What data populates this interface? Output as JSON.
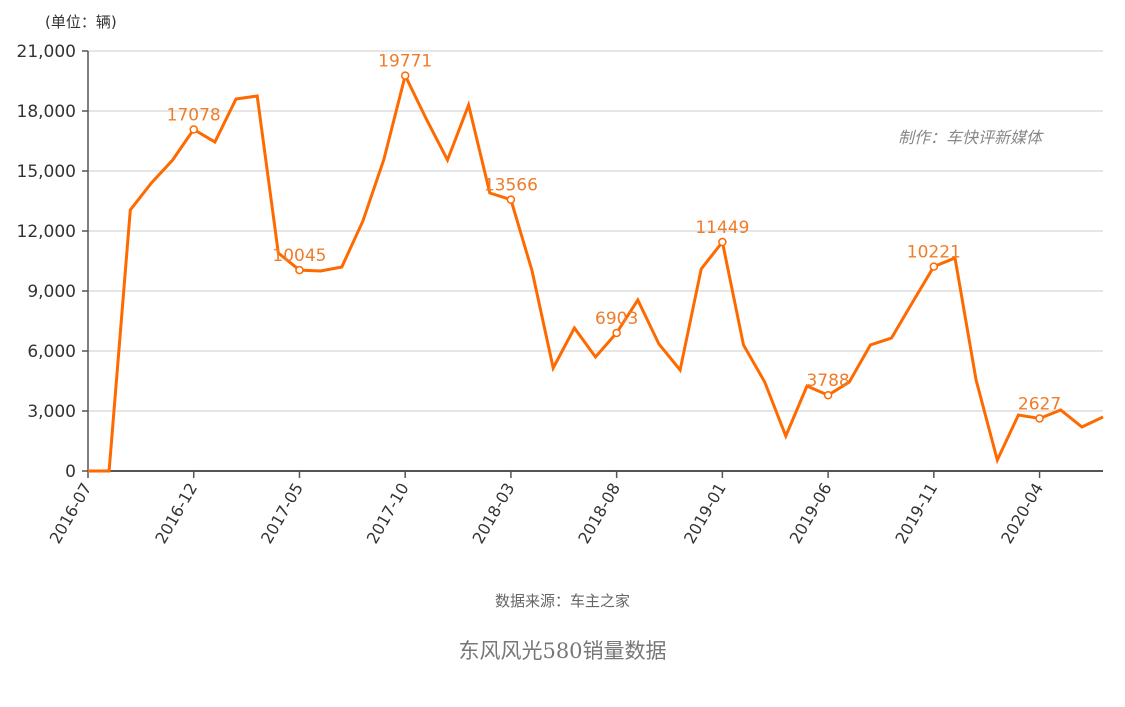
{
  "header": {
    "unit_label": "(单位：辆)"
  },
  "annotation": {
    "credit": "制作：车快评新媒体"
  },
  "footer": {
    "source": "数据来源：车主之家",
    "title": "东风风光580销量数据"
  },
  "colors": {
    "line": "#FF6A00",
    "label": "#F07C2A",
    "grid": "#CCCCCC",
    "axis": "#555555"
  },
  "chart_data": {
    "type": "line",
    "title": "东风风光580销量数据",
    "subtitle": "数据来源：车主之家",
    "xlabel": "",
    "ylabel": "(单位：辆)",
    "ylim": [
      0,
      21000
    ],
    "yticks": [
      0,
      3000,
      6000,
      9000,
      12000,
      15000,
      18000,
      21000
    ],
    "ytick_labels": [
      "0",
      "3,000",
      "6,000",
      "9,000",
      "12,000",
      "15,000",
      "18,000",
      "21,000"
    ],
    "xtick_labels": [
      "2016-07",
      "2016-12",
      "2017-05",
      "2017-10",
      "2018-03",
      "2018-08",
      "2019-01",
      "2019-06",
      "2019-11",
      "2020-04"
    ],
    "grid": true,
    "legend": "none",
    "x": [
      "2016-07",
      "2016-08",
      "2016-09",
      "2016-10",
      "2016-11",
      "2016-12",
      "2017-01",
      "2017-02",
      "2017-03",
      "2017-04",
      "2017-05",
      "2017-06",
      "2017-07",
      "2017-08",
      "2017-09",
      "2017-10",
      "2017-11",
      "2017-12",
      "2018-01",
      "2018-02",
      "2018-03",
      "2018-04",
      "2018-05",
      "2018-06",
      "2018-07",
      "2018-08",
      "2018-09",
      "2018-10",
      "2018-11",
      "2018-12",
      "2019-01",
      "2019-02",
      "2019-03",
      "2019-04",
      "2019-05",
      "2019-06",
      "2019-07",
      "2019-08",
      "2019-09",
      "2019-10",
      "2019-11",
      "2019-12",
      "2020-01",
      "2020-02",
      "2020-03",
      "2020-04",
      "2020-05",
      "2020-06",
      "2020-07"
    ],
    "series": [
      {
        "name": "销量",
        "values": [
          0,
          0,
          13050,
          14400,
          15550,
          17078,
          16450,
          18600,
          18750,
          10900,
          10045,
          10000,
          10200,
          12500,
          15600,
          19771,
          17600,
          15550,
          18300,
          13900,
          13566,
          10000,
          5150,
          7150,
          5700,
          6903,
          8550,
          6350,
          5050,
          10100,
          11449,
          6300,
          4450,
          1750,
          4250,
          3788,
          4450,
          6300,
          6650,
          8450,
          10221,
          10650,
          4550,
          550,
          2800,
          2627,
          3050,
          2200,
          2700
        ]
      }
    ],
    "annotations": [
      {
        "x": "2016-12",
        "value": 17078,
        "label": "17078"
      },
      {
        "x": "2017-05",
        "value": 10045,
        "label": "10045"
      },
      {
        "x": "2017-10",
        "value": 19771,
        "label": "19771"
      },
      {
        "x": "2018-03",
        "value": 13566,
        "label": "13566"
      },
      {
        "x": "2018-08",
        "value": 6903,
        "label": "6903"
      },
      {
        "x": "2019-01",
        "value": 11449,
        "label": "11449"
      },
      {
        "x": "2019-06",
        "value": 3788,
        "label": "3788"
      },
      {
        "x": "2019-11",
        "value": 10221,
        "label": "10221"
      },
      {
        "x": "2020-04",
        "value": 2627,
        "label": "2627"
      }
    ],
    "text_annotations": [
      "制作：车快评新媒体"
    ]
  }
}
